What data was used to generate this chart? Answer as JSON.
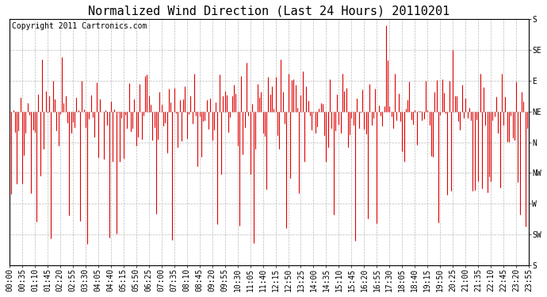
{
  "title": "Normalized Wind Direction (Last 24 Hours) 20110201",
  "copyright_text": "Copyright 2011 Cartronics.com",
  "line_color": "#dd0000",
  "background_color": "#ffffff",
  "grid_color": "#aaaaaa",
  "ytick_labels": [
    "S",
    "SE",
    "E",
    "NE",
    "N",
    "NW",
    "W",
    "SW",
    "S"
  ],
  "ytick_values": [
    1.0,
    0.875,
    0.75,
    0.625,
    0.5,
    0.375,
    0.25,
    0.125,
    0.0
  ],
  "ylim": [
    0.0,
    1.0
  ],
  "xtick_labels": [
    "00:00",
    "00:35",
    "01:10",
    "01:45",
    "02:20",
    "02:55",
    "03:30",
    "04:05",
    "04:40",
    "05:15",
    "05:50",
    "06:25",
    "07:00",
    "07:35",
    "08:10",
    "08:45",
    "09:20",
    "09:55",
    "10:30",
    "11:05",
    "11:40",
    "12:15",
    "12:50",
    "13:25",
    "14:00",
    "14:35",
    "15:10",
    "15:45",
    "16:20",
    "16:55",
    "17:30",
    "18:05",
    "18:40",
    "19:15",
    "19:50",
    "20:25",
    "21:00",
    "21:35",
    "22:10",
    "22:45",
    "23:20",
    "23:55"
  ],
  "num_points": 288,
  "seed": 42,
  "base_value": 0.6,
  "noise_scale": 0.1,
  "title_fontsize": 11,
  "tick_fontsize": 7,
  "copyright_fontsize": 7,
  "figwidth": 6.9,
  "figheight": 3.75,
  "dpi": 100
}
